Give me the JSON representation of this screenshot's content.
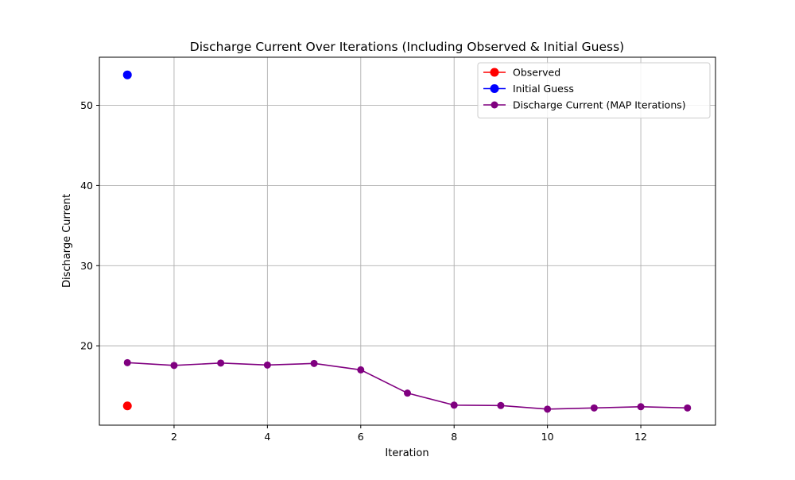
{
  "chart_data": {
    "type": "line",
    "title": "Discharge Current Over Iterations (Including Observed & Initial Guess)",
    "xlabel": "Iteration",
    "ylabel": "Discharge Current",
    "xlim": [
      0.4,
      13.6
    ],
    "ylim": [
      10.1,
      56.0
    ],
    "xticks": [
      2,
      4,
      6,
      8,
      10,
      12
    ],
    "yticks": [
      20,
      30,
      40,
      50
    ],
    "grid": true,
    "legend_position": "top-right",
    "series": [
      {
        "name": "Observed",
        "color": "#ff0000",
        "marker": "circle-large",
        "line": false,
        "x": [
          1
        ],
        "y": [
          12.5
        ]
      },
      {
        "name": "Initial Guess",
        "color": "#0000ff",
        "marker": "circle-large",
        "line": false,
        "x": [
          1
        ],
        "y": [
          53.8
        ]
      },
      {
        "name": "Discharge Current (MAP Iterations)",
        "color": "#800080",
        "marker": "circle",
        "line": true,
        "x": [
          1,
          2,
          3,
          4,
          5,
          6,
          7,
          8,
          9,
          10,
          11,
          12,
          13
        ],
        "y": [
          17.9,
          17.55,
          17.85,
          17.6,
          17.8,
          17.0,
          14.1,
          12.6,
          12.55,
          12.1,
          12.25,
          12.4,
          12.25
        ]
      }
    ]
  }
}
